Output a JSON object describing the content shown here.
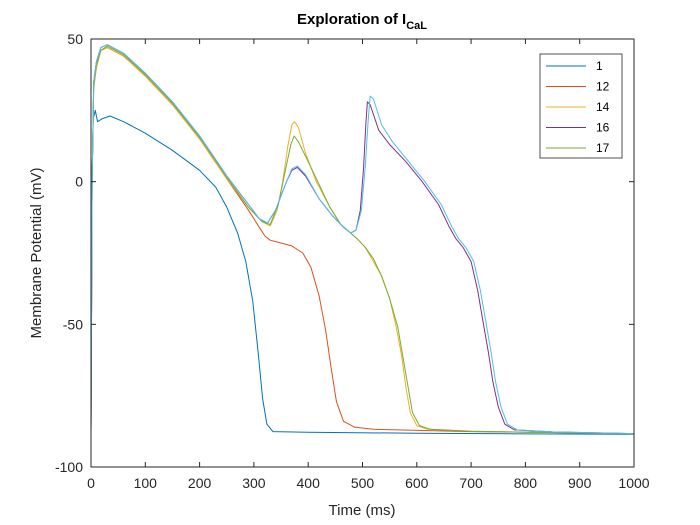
{
  "chart_data": {
    "type": "line",
    "title": "Exploration of I",
    "title_subscript": "CaL",
    "xlabel": "Time (ms)",
    "ylabel": "Membrane Potential (mV)",
    "xlim": [
      0,
      1000
    ],
    "ylim": [
      -100,
      50
    ],
    "xticks": [
      0,
      100,
      200,
      300,
      400,
      500,
      600,
      700,
      800,
      900,
      1000
    ],
    "yticks": [
      -100,
      -50,
      0,
      50
    ],
    "grid": false,
    "legend_position": "top-right",
    "series": [
      {
        "name": "1",
        "color": "#0072BD",
        "points": [
          [
            0,
            -88
          ],
          [
            2,
            0
          ],
          [
            4,
            22
          ],
          [
            8,
            25
          ],
          [
            12,
            21
          ],
          [
            20,
            22
          ],
          [
            35,
            23
          ],
          [
            60,
            21
          ],
          [
            100,
            17
          ],
          [
            150,
            11
          ],
          [
            200,
            4
          ],
          [
            230,
            -2
          ],
          [
            250,
            -9
          ],
          [
            270,
            -18
          ],
          [
            285,
            -28
          ],
          [
            298,
            -42
          ],
          [
            308,
            -60
          ],
          [
            316,
            -76
          ],
          [
            324,
            -85
          ],
          [
            335,
            -87.6
          ],
          [
            400,
            -87.8
          ],
          [
            600,
            -88.2
          ],
          [
            800,
            -88.4
          ],
          [
            1000,
            -88.5
          ]
        ]
      },
      {
        "name": "12",
        "color": "#D95319",
        "points": [
          [
            0,
            -88
          ],
          [
            2,
            0
          ],
          [
            5,
            33
          ],
          [
            10,
            40
          ],
          [
            18,
            46
          ],
          [
            30,
            47
          ],
          [
            60,
            44
          ],
          [
            100,
            37
          ],
          [
            150,
            27
          ],
          [
            200,
            15
          ],
          [
            250,
            1
          ],
          [
            290,
            -10
          ],
          [
            310,
            -16
          ],
          [
            320,
            -19
          ],
          [
            330,
            -20.5
          ],
          [
            350,
            -21.5
          ],
          [
            370,
            -22.5
          ],
          [
            390,
            -25
          ],
          [
            405,
            -30
          ],
          [
            420,
            -40
          ],
          [
            432,
            -52
          ],
          [
            442,
            -65
          ],
          [
            452,
            -77
          ],
          [
            465,
            -84
          ],
          [
            485,
            -86
          ],
          [
            520,
            -86.8
          ],
          [
            700,
            -87.6
          ],
          [
            1000,
            -88.3
          ]
        ]
      },
      {
        "name": "14",
        "color": "#EDB120",
        "points": [
          [
            0,
            -88
          ],
          [
            2,
            0
          ],
          [
            5,
            33
          ],
          [
            10,
            40
          ],
          [
            18,
            46
          ],
          [
            30,
            47
          ],
          [
            60,
            44
          ],
          [
            100,
            37
          ],
          [
            150,
            27
          ],
          [
            200,
            15
          ],
          [
            250,
            1
          ],
          [
            290,
            -9
          ],
          [
            315,
            -14
          ],
          [
            330,
            -15.5
          ],
          [
            343,
            -10
          ],
          [
            353,
            0
          ],
          [
            362,
            12
          ],
          [
            370,
            20
          ],
          [
            375,
            21
          ],
          [
            382,
            19
          ],
          [
            395,
            10
          ],
          [
            415,
            0
          ],
          [
            440,
            -9
          ],
          [
            460,
            -15
          ],
          [
            478,
            -18
          ],
          [
            490,
            -20
          ],
          [
            505,
            -23
          ],
          [
            520,
            -28
          ],
          [
            535,
            -33
          ],
          [
            550,
            -41
          ],
          [
            562,
            -51
          ],
          [
            572,
            -61
          ],
          [
            580,
            -72
          ],
          [
            588,
            -81
          ],
          [
            600,
            -85.5
          ],
          [
            620,
            -86.8
          ],
          [
            700,
            -87.5
          ],
          [
            1000,
            -88.3
          ]
        ]
      },
      {
        "name": "16",
        "color": "#7E2F8E",
        "points": [
          [
            0,
            -88
          ],
          [
            2,
            0
          ],
          [
            5,
            35
          ],
          [
            10,
            42
          ],
          [
            18,
            47
          ],
          [
            30,
            48
          ],
          [
            60,
            45
          ],
          [
            100,
            38
          ],
          [
            150,
            28
          ],
          [
            200,
            16
          ],
          [
            250,
            2
          ],
          [
            290,
            -8
          ],
          [
            310,
            -13
          ],
          [
            325,
            -14.5
          ],
          [
            340,
            -10
          ],
          [
            350,
            -5
          ],
          [
            360,
            0
          ],
          [
            370,
            4
          ],
          [
            380,
            5
          ],
          [
            395,
            2
          ],
          [
            420,
            -6
          ],
          [
            445,
            -12
          ],
          [
            465,
            -16
          ],
          [
            478,
            -18
          ],
          [
            488,
            -17
          ],
          [
            496,
            -10
          ],
          [
            502,
            5
          ],
          [
            506,
            20
          ],
          [
            509,
            28
          ],
          [
            514,
            27
          ],
          [
            530,
            18
          ],
          [
            550,
            13
          ],
          [
            580,
            7
          ],
          [
            610,
            0
          ],
          [
            640,
            -8
          ],
          [
            660,
            -16
          ],
          [
            672,
            -20
          ],
          [
            685,
            -23
          ],
          [
            700,
            -28
          ],
          [
            712,
            -38
          ],
          [
            722,
            -49
          ],
          [
            732,
            -60
          ],
          [
            740,
            -70
          ],
          [
            750,
            -79
          ],
          [
            762,
            -85
          ],
          [
            780,
            -87
          ],
          [
            850,
            -87.7
          ],
          [
            1000,
            -88.3
          ]
        ]
      },
      {
        "name": "17",
        "color": "#77AC30",
        "points": [
          [
            0,
            -88
          ],
          [
            2,
            0
          ],
          [
            5,
            34
          ],
          [
            10,
            41
          ],
          [
            18,
            46
          ],
          [
            30,
            47.5
          ],
          [
            60,
            44.5
          ],
          [
            100,
            37.5
          ],
          [
            150,
            27.5
          ],
          [
            200,
            15.5
          ],
          [
            250,
            1.5
          ],
          [
            290,
            -9
          ],
          [
            315,
            -14
          ],
          [
            330,
            -15
          ],
          [
            345,
            -8
          ],
          [
            358,
            4
          ],
          [
            368,
            13
          ],
          [
            374,
            16
          ],
          [
            382,
            14
          ],
          [
            400,
            7
          ],
          [
            420,
            -1
          ],
          [
            440,
            -9
          ],
          [
            460,
            -15
          ],
          [
            478,
            -18
          ],
          [
            490,
            -20
          ],
          [
            505,
            -23
          ],
          [
            520,
            -27
          ],
          [
            535,
            -33
          ],
          [
            550,
            -41
          ],
          [
            565,
            -51
          ],
          [
            575,
            -62
          ],
          [
            584,
            -72
          ],
          [
            592,
            -81
          ],
          [
            605,
            -85.5
          ],
          [
            625,
            -86.8
          ],
          [
            700,
            -87.5
          ],
          [
            1000,
            -88.3
          ]
        ]
      },
      {
        "name": "",
        "color": "#4DBEEE",
        "points": [
          [
            0,
            -88
          ],
          [
            2,
            0
          ],
          [
            5,
            35
          ],
          [
            10,
            42
          ],
          [
            18,
            47
          ],
          [
            30,
            48
          ],
          [
            60,
            45
          ],
          [
            100,
            38
          ],
          [
            150,
            28
          ],
          [
            200,
            16
          ],
          [
            250,
            2
          ],
          [
            290,
            -8
          ],
          [
            310,
            -13
          ],
          [
            325,
            -14.5
          ],
          [
            340,
            -10
          ],
          [
            350,
            -5
          ],
          [
            360,
            0
          ],
          [
            370,
            4.5
          ],
          [
            380,
            5.5
          ],
          [
            395,
            2.5
          ],
          [
            420,
            -6
          ],
          [
            445,
            -12
          ],
          [
            465,
            -16
          ],
          [
            478,
            -18
          ],
          [
            488,
            -17
          ],
          [
            498,
            -10
          ],
          [
            505,
            5
          ],
          [
            510,
            20
          ],
          [
            514,
            30
          ],
          [
            520,
            29
          ],
          [
            535,
            20
          ],
          [
            555,
            14
          ],
          [
            585,
            7
          ],
          [
            615,
            0
          ],
          [
            645,
            -8
          ],
          [
            665,
            -16
          ],
          [
            677,
            -20
          ],
          [
            690,
            -23
          ],
          [
            705,
            -28
          ],
          [
            717,
            -38
          ],
          [
            727,
            -49
          ],
          [
            737,
            -60
          ],
          [
            745,
            -70
          ],
          [
            755,
            -79
          ],
          [
            767,
            -85
          ],
          [
            785,
            -87
          ],
          [
            850,
            -87.7
          ],
          [
            1000,
            -88.3
          ]
        ]
      }
    ]
  }
}
